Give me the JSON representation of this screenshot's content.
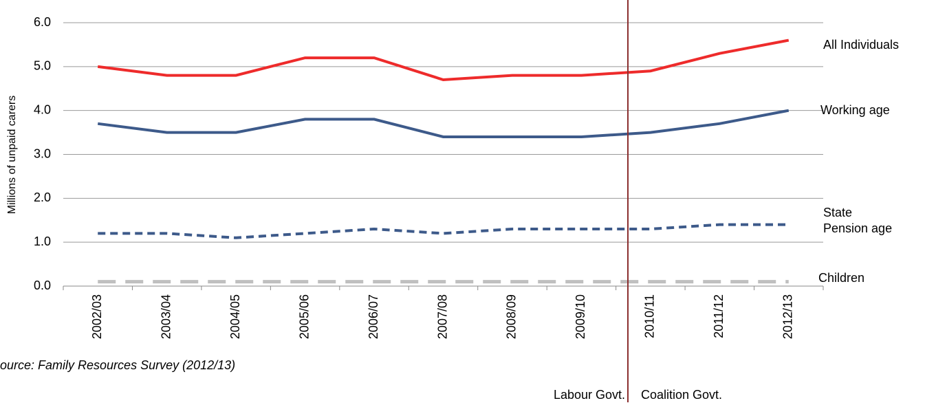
{
  "chart_data": {
    "type": "line",
    "y_label": "Millions of unpaid carers",
    "source": "ource: Family Resources Survey (2012/13)",
    "categories": [
      "2002/03",
      "2003/04",
      "2004/05",
      "2005/06",
      "2006/07",
      "2007/08",
      "2008/09",
      "2009/10",
      "2010/11",
      "2011/12",
      "2012/13"
    ],
    "series": [
      {
        "name": "All Individuals",
        "color": "#ee2b2b",
        "dash": "solid",
        "values": [
          5.0,
          4.8,
          4.8,
          5.2,
          5.2,
          4.7,
          4.8,
          4.8,
          4.9,
          5.3,
          5.6
        ]
      },
      {
        "name": "Working age",
        "color": "#3d5a8a",
        "dash": "solid",
        "values": [
          3.7,
          3.5,
          3.5,
          3.8,
          3.8,
          3.4,
          3.4,
          3.4,
          3.5,
          3.7,
          4.0
        ]
      },
      {
        "name": "State Pension age",
        "color": "#3d5a8a",
        "dash": "short",
        "values": [
          1.2,
          1.2,
          1.1,
          1.2,
          1.3,
          1.2,
          1.3,
          1.3,
          1.3,
          1.4,
          1.4
        ]
      },
      {
        "name": "Children",
        "color": "#bfbfbf",
        "dash": "long",
        "values": [
          0.1,
          0.1,
          0.1,
          0.1,
          0.1,
          0.1,
          0.1,
          0.1,
          0.1,
          0.1,
          0.1
        ]
      }
    ],
    "ylim": [
      0,
      6
    ],
    "yticks": [
      {
        "value": 0,
        "label": "0.0"
      },
      {
        "value": 1,
        "label": "1.0"
      },
      {
        "value": 2,
        "label": "2.0"
      },
      {
        "value": 3,
        "label": "3.0"
      },
      {
        "value": 4,
        "label": "4.0"
      },
      {
        "value": 5,
        "label": "5.0"
      },
      {
        "value": 6,
        "label": "6.0"
      }
    ],
    "grid": true,
    "annotations": [
      "Labour Govt.",
      "Coalition Govt."
    ]
  }
}
